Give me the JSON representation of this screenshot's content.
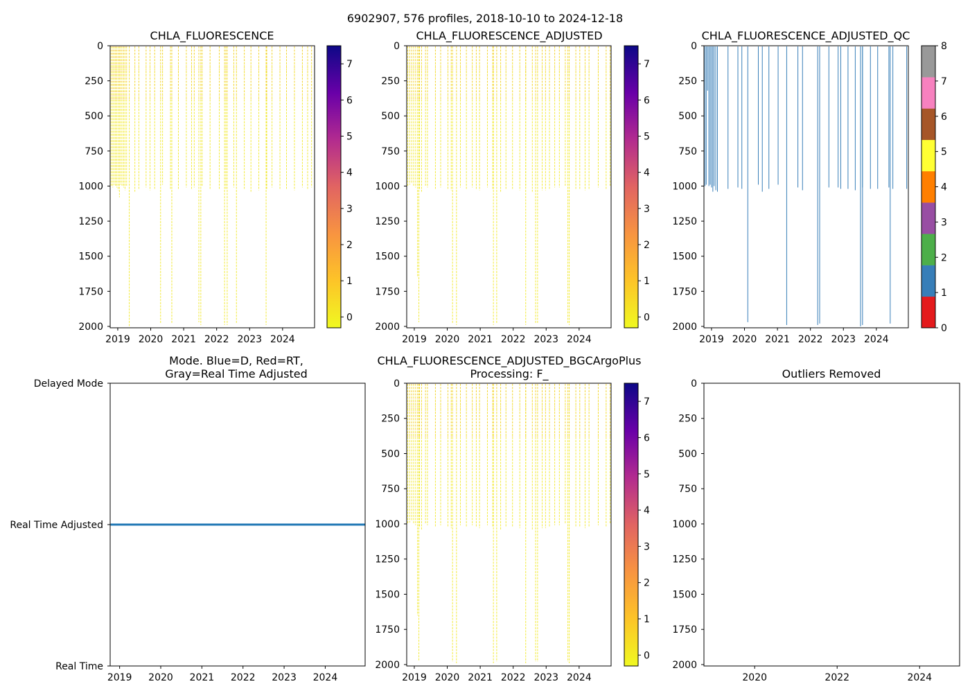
{
  "suptitle": "6902907, 576 profiles, 2018-10-10 to 2024-12-18",
  "colors": {
    "plasma_r": [
      "#f0f921",
      "#fdc328",
      "#f89540",
      "#e16462",
      "#b12a90",
      "#6a00a8",
      "#0d0887"
    ],
    "qc_palette": [
      "#e41a1c",
      "#377eb8",
      "#4daf4a",
      "#984ea3",
      "#ff7f00",
      "#ffff33",
      "#a65628",
      "#f781bf",
      "#999999"
    ],
    "profile_yellow": "#f2e928",
    "profile_orange": "#f8a23a",
    "qc_profile": "#377eb8",
    "mode_line": "#1f77b4"
  },
  "chart_data": [
    {
      "type": "heatmap",
      "title": "CHLA_FLUORESCENCE",
      "ylim": [
        2010,
        0
      ],
      "yticks": [
        "0",
        "250",
        "500",
        "750",
        "1000",
        "1250",
        "1500",
        "1750",
        "2000"
      ],
      "xlim": [
        2018.77,
        2024.97
      ],
      "xticks": [
        "2019",
        "2020",
        "2021",
        "2022",
        "2023",
        "2024"
      ],
      "colorbar": {
        "range": [
          -0.3,
          7.5
        ],
        "ticks": [
          "0",
          "1",
          "2",
          "3",
          "4",
          "5",
          "6",
          "7"
        ]
      },
      "shallow_profiles": {
        "x": [
          2018.8,
          2018.85,
          2018.89,
          2018.93,
          2018.97,
          2019.01,
          2019.05,
          2019.09,
          2019.13,
          2019.18,
          2019.22,
          2019.27,
          2019.52,
          2019.64,
          2019.86,
          2019.98,
          2020.12,
          2020.36,
          2020.6,
          2020.84,
          2021.08,
          2021.24,
          2021.32,
          2021.56,
          2021.8,
          2022.08,
          2022.28,
          2022.52,
          2022.84,
          2023.04,
          2023.28,
          2023.52,
          2023.68,
          2023.92,
          2024.12,
          2024.36,
          2024.6,
          2024.76,
          2024.88
        ],
        "max_depth": [
          1000,
          1010,
          990,
          1000,
          1010,
          1030,
          1080,
          990,
          1000,
          1010,
          1030,
          1000,
          1040,
          1020,
          1010,
          1030,
          1020,
          990,
          1020,
          1020,
          1010,
          1020,
          1010,
          1000,
          1020,
          1020,
          1020,
          1010,
          1020,
          1040,
          1030,
          1020,
          1010,
          1020,
          1020,
          1030,
          1010,
          1020,
          1010
        ]
      },
      "deep_profiles": {
        "x": [
          2019.35,
          2020.3,
          2020.64,
          2021.46,
          2021.52,
          2022.24,
          2022.32,
          2022.6,
          2023.5
        ],
        "max_depth": [
          2000,
          1980,
          1980,
          1970,
          1990,
          1990,
          1990,
          1980,
          1990
        ]
      }
    },
    {
      "type": "heatmap",
      "title": "CHLA_FLUORESCENCE_ADJUSTED",
      "ylim": [
        2010,
        0
      ],
      "yticks": [
        "0",
        "250",
        "500",
        "750",
        "1000",
        "1250",
        "1500",
        "1750",
        "2000"
      ],
      "xlim": [
        2018.77,
        2024.97
      ],
      "xticks": [
        "2019",
        "2020",
        "2021",
        "2022",
        "2023",
        "2024"
      ],
      "colorbar": {
        "range": [
          -0.3,
          7.5
        ],
        "ticks": [
          "0",
          "1",
          "2",
          "3",
          "4",
          "5",
          "6",
          "7"
        ]
      },
      "shallow_profiles": {
        "x": [
          2018.8,
          2018.86,
          2018.92,
          2018.98,
          2019.04,
          2019.16,
          2019.22,
          2019.34,
          2019.4,
          2019.64,
          2019.8,
          2020.02,
          2020.12,
          2020.4,
          2020.58,
          2020.76,
          2020.88,
          2020.98,
          2021.22,
          2021.38,
          2021.62,
          2021.78,
          2021.98,
          2022.2,
          2022.38,
          2022.58,
          2022.88,
          2022.98,
          2023.1,
          2023.26,
          2023.4,
          2023.58,
          2023.9,
          2024.02,
          2024.18,
          2024.3,
          2024.58,
          2024.82,
          2024.94
        ],
        "max_depth": [
          1000,
          990,
          980,
          1000,
          1010,
          1020,
          1040,
          1000,
          1010,
          1020,
          1010,
          1020,
          1030,
          1010,
          1020,
          1010,
          1020,
          1030,
          1010,
          1020,
          1040,
          1020,
          1020,
          1030,
          1010,
          1040,
          1030,
          1030,
          1020,
          1010,
          1010,
          1000,
          1020,
          1020,
          1030,
          1020,
          1010,
          1020,
          1000
        ]
      },
      "deep_profiles": {
        "x": [
          2019.1,
          2019.14,
          2020.16,
          2020.28,
          2021.4,
          2021.5,
          2022.38,
          2022.68,
          2022.74,
          2023.66,
          2023.7
        ],
        "max_depth": [
          1650,
          1970,
          1980,
          1990,
          1990,
          1980,
          1990,
          1980,
          1980,
          1980,
          1990
        ]
      }
    },
    {
      "type": "heatmap",
      "title": "CHLA_FLUORESCENCE_ADJUSTED_QC",
      "ylim": [
        2010,
        0
      ],
      "yticks": [
        "0",
        "250",
        "500",
        "750",
        "1000",
        "1250",
        "1500",
        "1750",
        "2000"
      ],
      "xlim": [
        2018.77,
        2024.97
      ],
      "xticks": [
        "2019",
        "2020",
        "2021",
        "2022",
        "2023",
        "2024"
      ],
      "colorbar": {
        "range": [
          0,
          8
        ],
        "ticks": [
          "0",
          "1",
          "2",
          "3",
          "4",
          "5",
          "6",
          "7",
          "8"
        ],
        "categorical": true
      },
      "shallow_profiles": {
        "x": [
          2018.8,
          2018.84,
          2018.88,
          2018.92,
          2018.96,
          2019.0,
          2019.04,
          2019.08,
          2019.13,
          2019.18,
          2019.5,
          2019.8,
          2019.92,
          2020.42,
          2020.54,
          2020.74,
          2021.02,
          2021.62,
          2021.76,
          2022.28,
          2022.56,
          2022.84,
          2022.92,
          2023.14,
          2023.36,
          2023.58,
          2023.82,
          2024.04,
          2024.38,
          2024.5,
          2024.92
        ],
        "max_depth": [
          1000,
          990,
          320,
          1000,
          990,
          1010,
          1040,
          1000,
          1030,
          1040,
          1020,
          1010,
          1020,
          990,
          1040,
          1020,
          990,
          1010,
          1030,
          1020,
          1010,
          1010,
          1020,
          1020,
          1030,
          1010,
          1020,
          1020,
          1010,
          1020,
          1020
        ]
      },
      "deep_profiles": {
        "x": [
          2020.1,
          2021.28,
          2022.22,
          2022.28,
          2023.52,
          2023.58,
          2024.42
        ],
        "max_depth": [
          1970,
          1990,
          1990,
          1980,
          2000,
          1990,
          1980
        ]
      }
    },
    {
      "type": "line",
      "title_lines": [
        "Mode. Blue=D, Red=RT,",
        "Gray=Real Time Adjusted"
      ],
      "yticks": [
        "Delayed Mode",
        "Real Time Adjusted",
        "Real Time"
      ],
      "y_values": [
        2,
        1,
        0
      ],
      "xlim": [
        2018.77,
        2024.97
      ],
      "xticks": [
        "2019",
        "2020",
        "2021",
        "2022",
        "2023",
        "2024"
      ],
      "series": [
        {
          "name": "Real Time Adjusted",
          "x": [
            2018.78,
            2024.97
          ],
          "y": [
            1,
            1
          ]
        }
      ]
    },
    {
      "type": "heatmap",
      "title_lines": [
        "CHLA_FLUORESCENCE_ADJUSTED_BGCArgoPlus",
        "Processing: F_"
      ],
      "ylim": [
        2010,
        0
      ],
      "yticks": [
        "0",
        "250",
        "500",
        "750",
        "1000",
        "1250",
        "1500",
        "1750",
        "2000"
      ],
      "xlim": [
        2018.77,
        2024.97
      ],
      "xticks": [
        "2019",
        "2020",
        "2021",
        "2022",
        "2023",
        "2024"
      ],
      "colorbar": {
        "range": [
          -0.3,
          7.5
        ],
        "ticks": [
          "0",
          "1",
          "2",
          "3",
          "4",
          "5",
          "6",
          "7"
        ]
      },
      "shallow_profiles": {
        "x": [
          2018.8,
          2018.86,
          2018.92,
          2018.98,
          2019.04,
          2019.16,
          2019.22,
          2019.34,
          2019.4,
          2019.64,
          2019.8,
          2020.02,
          2020.12,
          2020.4,
          2020.58,
          2020.76,
          2020.88,
          2020.98,
          2021.22,
          2021.38,
          2021.62,
          2021.78,
          2021.98,
          2022.2,
          2022.38,
          2022.58,
          2022.88,
          2022.98,
          2023.1,
          2023.26,
          2023.4,
          2023.58,
          2023.9,
          2024.02,
          2024.18,
          2024.3,
          2024.58,
          2024.82,
          2024.94
        ],
        "max_depth": [
          1000,
          990,
          980,
          1000,
          1010,
          1020,
          1040,
          1000,
          1010,
          1020,
          1010,
          1020,
          1030,
          1010,
          1020,
          1010,
          1020,
          1030,
          1010,
          1020,
          1040,
          1020,
          1020,
          1030,
          1010,
          1040,
          1030,
          1030,
          1020,
          1010,
          1010,
          1000,
          1020,
          1020,
          1030,
          1020,
          1010,
          1020,
          1000
        ]
      },
      "deep_profiles": {
        "x": [
          2019.1,
          2019.14,
          2020.16,
          2020.28,
          2021.4,
          2021.5,
          2022.38,
          2022.68,
          2022.74,
          2023.66,
          2023.7
        ],
        "max_depth": [
          1650,
          1970,
          1980,
          1990,
          1990,
          1980,
          1990,
          1980,
          1980,
          1980,
          1990
        ]
      }
    },
    {
      "type": "scatter",
      "title": "Outliers Removed",
      "ylim": [
        2010,
        0
      ],
      "yticks": [
        "0",
        "250",
        "500",
        "750",
        "1000",
        "1250",
        "1500",
        "1750",
        "2000"
      ],
      "xlim": [
        2018.77,
        2024.97
      ],
      "xticks": [
        "2020",
        "2022",
        "2024"
      ],
      "points": []
    }
  ]
}
